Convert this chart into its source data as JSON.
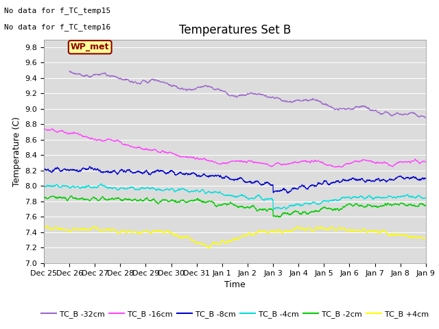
{
  "title": "Temperatures Set B",
  "xlabel": "Time",
  "ylabel": "Temperature (C)",
  "annotations": [
    "No data for f_TC_temp15",
    "No data for f_TC_temp16"
  ],
  "wp_met_label": "WP_met",
  "ylim": [
    7.0,
    9.9
  ],
  "yticks": [
    7.0,
    7.2,
    7.4,
    7.6,
    7.8,
    8.0,
    8.2,
    8.4,
    8.6,
    8.8,
    9.0,
    9.2,
    9.4,
    9.6,
    9.8
  ],
  "xtick_labels": [
    "Dec 25",
    "Dec 26",
    "Dec 27",
    "Dec 28",
    "Dec 29",
    "Dec 30",
    "Dec 31",
    "Jan 1",
    "Jan 2",
    "Jan 3",
    "Jan 4",
    "Jan 5",
    "Jan 6",
    "Jan 7",
    "Jan 8",
    "Jan 9"
  ],
  "legend_labels": [
    "TC_B -32cm",
    "TC_B -16cm",
    "TC_B -8cm",
    "TC_B -4cm",
    "TC_B -2cm",
    "TC_B +4cm"
  ],
  "colors": {
    "TC_B_32cm": "#9966CC",
    "TC_B_16cm": "#FF44FF",
    "TC_B_8cm": "#0000CC",
    "TC_B_4cm": "#00DDDD",
    "TC_B_2cm": "#00CC00",
    "TC_B_p4cm": "#FFFF00"
  },
  "plot_bg": "#DCDCDC",
  "fig_bg": "#FFFFFF",
  "title_fontsize": 12,
  "label_fontsize": 9,
  "tick_fontsize": 8,
  "annot_fontsize": 8,
  "num_points": 2000
}
